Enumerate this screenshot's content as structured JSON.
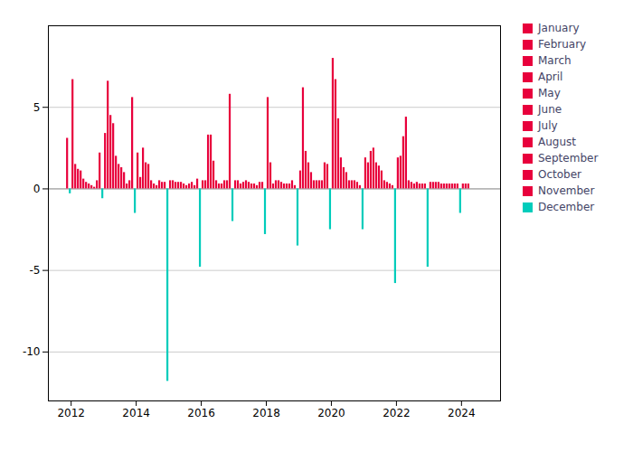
{
  "chart_data": {
    "type": "bar",
    "xlim": [
      2011.3,
      2025.2
    ],
    "xticks": [
      2012,
      2014,
      2016,
      2018,
      2020,
      2022,
      2024
    ],
    "ylim": [
      -13,
      10
    ],
    "yticks": [
      -10,
      -5,
      0,
      5
    ],
    "grid": true,
    "legend": "right",
    "series": [
      {
        "name": "January",
        "color": "#e8003c",
        "x": [
          2012.0417,
          2013.0417,
          2014.0417,
          2015.0417,
          2016.0417,
          2017.0417,
          2018.0417,
          2019.0417,
          2020.0417,
          2021.0417,
          2022.0417,
          2023.0417,
          2024.0417
        ],
        "values": [
          6.7,
          3.4,
          2.2,
          0.5,
          0.5,
          0.5,
          5.6,
          1.1,
          8.0,
          1.9,
          1.9,
          0.4,
          0.3
        ]
      },
      {
        "name": "February",
        "color": "#e8003c",
        "x": [
          2012.125,
          2013.125,
          2014.125,
          2015.125,
          2016.125,
          2017.125,
          2018.125,
          2019.125,
          2020.125,
          2021.125,
          2022.125,
          2023.125,
          2024.125
        ],
        "values": [
          1.5,
          6.6,
          0.7,
          0.5,
          0.5,
          0.5,
          1.6,
          6.2,
          6.7,
          1.6,
          2.0,
          0.4,
          0.3
        ]
      },
      {
        "name": "March",
        "color": "#e8003c",
        "x": [
          2012.2083,
          2013.2083,
          2014.2083,
          2015.2083,
          2016.2083,
          2017.2083,
          2018.2083,
          2019.2083,
          2020.2083,
          2021.2083,
          2022.2083,
          2023.2083,
          2024.2083
        ],
        "values": [
          1.2,
          4.5,
          2.5,
          0.4,
          3.3,
          0.3,
          0.3,
          2.3,
          4.3,
          2.3,
          3.2,
          0.4,
          0.3
        ]
      },
      {
        "name": "April",
        "color": "#e8003c",
        "x": [
          2012.2917,
          2013.2917,
          2014.2917,
          2015.2917,
          2016.2917,
          2017.2917,
          2018.2917,
          2019.2917,
          2020.2917,
          2021.2917,
          2022.2917,
          2023.2917
        ],
        "values": [
          1.1,
          4.0,
          1.6,
          0.4,
          3.3,
          0.4,
          0.5,
          1.6,
          1.9,
          2.5,
          4.4,
          0.4
        ]
      },
      {
        "name": "May",
        "color": "#e8003c",
        "x": [
          2012.375,
          2013.375,
          2014.375,
          2015.375,
          2016.375,
          2017.375,
          2018.375,
          2019.375,
          2020.375,
          2021.375,
          2022.375,
          2023.375
        ],
        "values": [
          0.6,
          2.0,
          1.5,
          0.4,
          1.7,
          0.5,
          0.5,
          1.0,
          1.3,
          1.6,
          0.5,
          0.3
        ]
      },
      {
        "name": "June",
        "color": "#e8003c",
        "x": [
          2012.4583,
          2013.4583,
          2014.4583,
          2015.4583,
          2016.4583,
          2017.4583,
          2018.4583,
          2019.4583,
          2020.4583,
          2021.4583,
          2022.4583,
          2023.4583
        ],
        "values": [
          0.4,
          1.5,
          0.5,
          0.3,
          0.5,
          0.4,
          0.4,
          0.5,
          1.0,
          1.4,
          0.4,
          0.3
        ]
      },
      {
        "name": "July",
        "color": "#e8003c",
        "x": [
          2012.5417,
          2013.5417,
          2014.5417,
          2015.5417,
          2016.5417,
          2017.5417,
          2018.5417,
          2019.5417,
          2020.5417,
          2021.5417,
          2022.5417,
          2023.5417
        ],
        "values": [
          0.3,
          1.3,
          0.3,
          0.2,
          0.3,
          0.3,
          0.3,
          0.5,
          0.5,
          1.1,
          0.3,
          0.3
        ]
      },
      {
        "name": "August",
        "color": "#e8003c",
        "x": [
          2012.625,
          2013.625,
          2014.625,
          2015.625,
          2016.625,
          2017.625,
          2018.625,
          2019.625,
          2020.625,
          2021.625,
          2022.625,
          2023.625
        ],
        "values": [
          0.2,
          1.0,
          0.2,
          0.3,
          0.3,
          0.3,
          0.3,
          0.5,
          0.5,
          0.5,
          0.4,
          0.3
        ]
      },
      {
        "name": "September",
        "color": "#e8003c",
        "x": [
          2012.7083,
          2013.7083,
          2014.7083,
          2015.7083,
          2016.7083,
          2017.7083,
          2018.7083,
          2019.7083,
          2020.7083,
          2021.7083,
          2022.7083,
          2023.7083
        ],
        "values": [
          0.1,
          0.3,
          0.5,
          0.4,
          0.5,
          0.2,
          0.3,
          0.5,
          0.5,
          0.4,
          0.3,
          0.3
        ]
      },
      {
        "name": "October",
        "color": "#e8003c",
        "x": [
          2012.7917,
          2013.7917,
          2014.7917,
          2015.7917,
          2016.7917,
          2017.7917,
          2018.7917,
          2019.7917,
          2020.7917,
          2021.7917,
          2022.7917,
          2023.7917
        ],
        "values": [
          0.5,
          0.5,
          0.4,
          0.2,
          0.5,
          0.4,
          0.5,
          1.6,
          0.4,
          0.3,
          0.3,
          0.3
        ]
      },
      {
        "name": "November",
        "color": "#e8003c",
        "x": [
          2011.875,
          2012.875,
          2013.875,
          2014.875,
          2015.875,
          2016.875,
          2017.875,
          2018.875,
          2019.875,
          2020.875,
          2021.875,
          2022.875,
          2023.875
        ],
        "values": [
          3.1,
          2.2,
          5.6,
          0.4,
          0.6,
          5.8,
          0.4,
          0.2,
          1.5,
          0.2,
          0.2,
          0.3,
          0.3
        ]
      },
      {
        "name": "December",
        "color": "#00ccbb",
        "x": [
          2011.9583,
          2012.9583,
          2013.9583,
          2014.9583,
          2015.9583,
          2016.9583,
          2017.9583,
          2018.9583,
          2019.9583,
          2020.9583,
          2021.9583,
          2022.9583,
          2023.9583
        ],
        "values": [
          -0.3,
          -0.6,
          -1.5,
          -11.8,
          -4.8,
          -2.0,
          -2.8,
          -3.5,
          -2.5,
          -2.5,
          -5.8,
          -4.8,
          -1.5
        ]
      }
    ]
  }
}
